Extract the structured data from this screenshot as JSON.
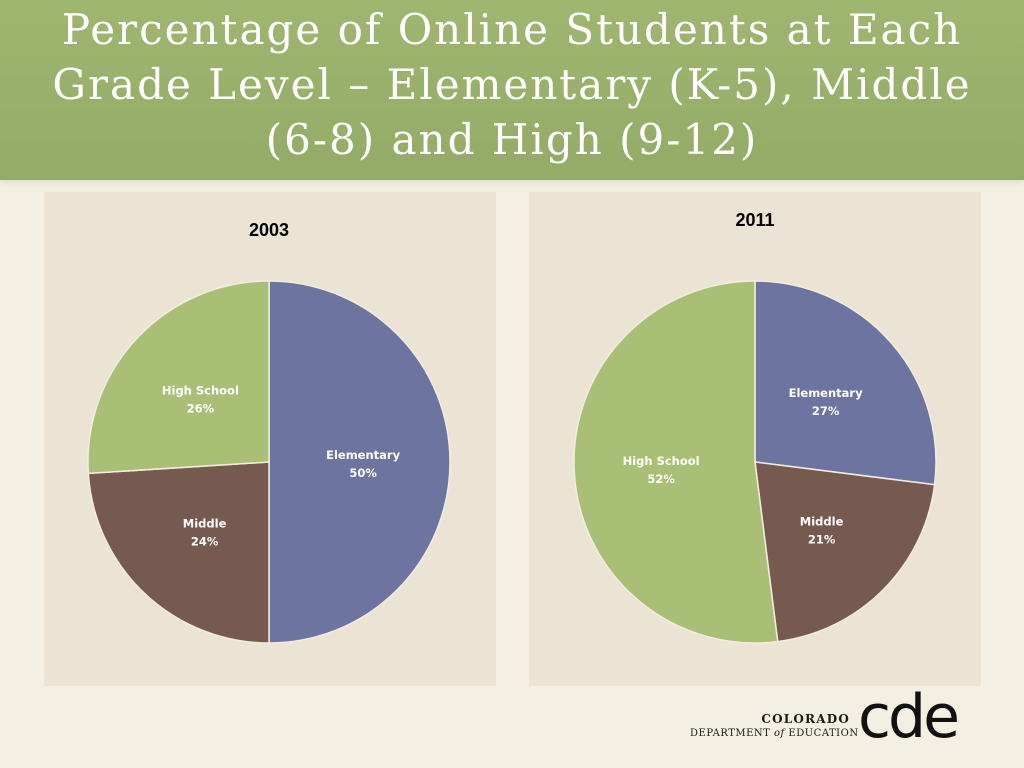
{
  "slide": {
    "title": "Percentage of Online Students at Each Grade Level – Elementary (K-5), Middle (6-8) and High (9-12)"
  },
  "colors": {
    "elementary": "#6e74a0",
    "middle": "#765a4f",
    "high_school": "#a9bf75",
    "title_band": "#9ab26c",
    "panel": "#ebe4d4"
  },
  "chart_data": [
    {
      "type": "pie",
      "title": "2003",
      "slices": [
        {
          "label": "Elementary",
          "value": 50,
          "display": "50%"
        },
        {
          "label": "Middle",
          "value": 24,
          "display": "24%"
        },
        {
          "label": "High School",
          "value": 26,
          "display": "26%"
        }
      ]
    },
    {
      "type": "pie",
      "title": "2011",
      "slices": [
        {
          "label": "Elementary",
          "value": 27,
          "display": "27%"
        },
        {
          "label": "Middle",
          "value": 21,
          "display": "21%"
        },
        {
          "label": "High School",
          "value": 52,
          "display": "52%"
        }
      ]
    }
  ],
  "logo": {
    "state": "COLORADO",
    "dept_prefix": "DEPARTMENT ",
    "dept_of": "of",
    "dept_suffix": " EDUCATION",
    "mark": "cde"
  }
}
